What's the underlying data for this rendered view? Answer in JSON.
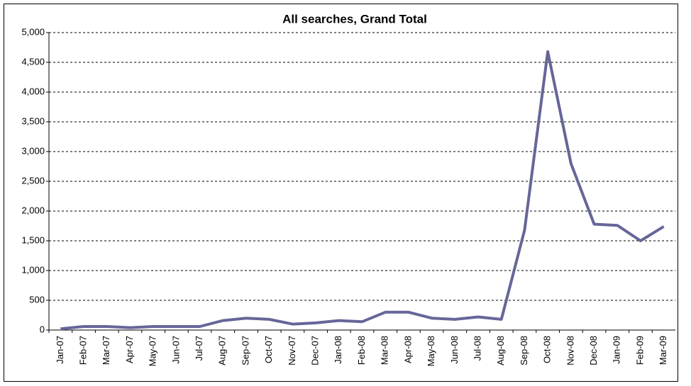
{
  "chart_data": {
    "type": "line",
    "title": "All searches, Grand Total",
    "categories": [
      "Jan-07",
      "Feb-07",
      "Mar-07",
      "Apr-07",
      "May-07",
      "Jun-07",
      "Jul-07",
      "Aug-07",
      "Sep-07",
      "Oct-07",
      "Nov-07",
      "Dec-07",
      "Jan-08",
      "Feb-08",
      "Mar-08",
      "Apr-08",
      "May-08",
      "Jun-08",
      "Jul-08",
      "Aug-08",
      "Sep-08",
      "Oct-08",
      "Nov-08",
      "Dec-08",
      "Jan-09",
      "Feb-09",
      "Mar-09"
    ],
    "values": [
      20,
      60,
      60,
      40,
      60,
      60,
      60,
      160,
      200,
      180,
      100,
      120,
      160,
      140,
      300,
      300,
      200,
      180,
      220,
      180,
      1680,
      4680,
      2800,
      1780,
      1760,
      1500,
      1740
    ],
    "color": "#666699",
    "ylim": [
      0,
      5000
    ],
    "yticks": [
      0,
      {
        "value": 500,
        "label": "500"
      },
      {
        "value": 1000,
        "label": "1,000"
      },
      {
        "value": 1500,
        "label": "1,500"
      },
      {
        "value": 2000,
        "label": "2,000"
      },
      {
        "value": 2500,
        "label": "2,500"
      },
      {
        "value": 3000,
        "label": "3,000"
      },
      {
        "value": 3500,
        "label": "3,500"
      },
      {
        "value": 4000,
        "label": "4,000"
      },
      {
        "value": 4500,
        "label": "4,500"
      },
      {
        "value": 5000,
        "label": "5,000"
      }
    ],
    "grid": true
  }
}
